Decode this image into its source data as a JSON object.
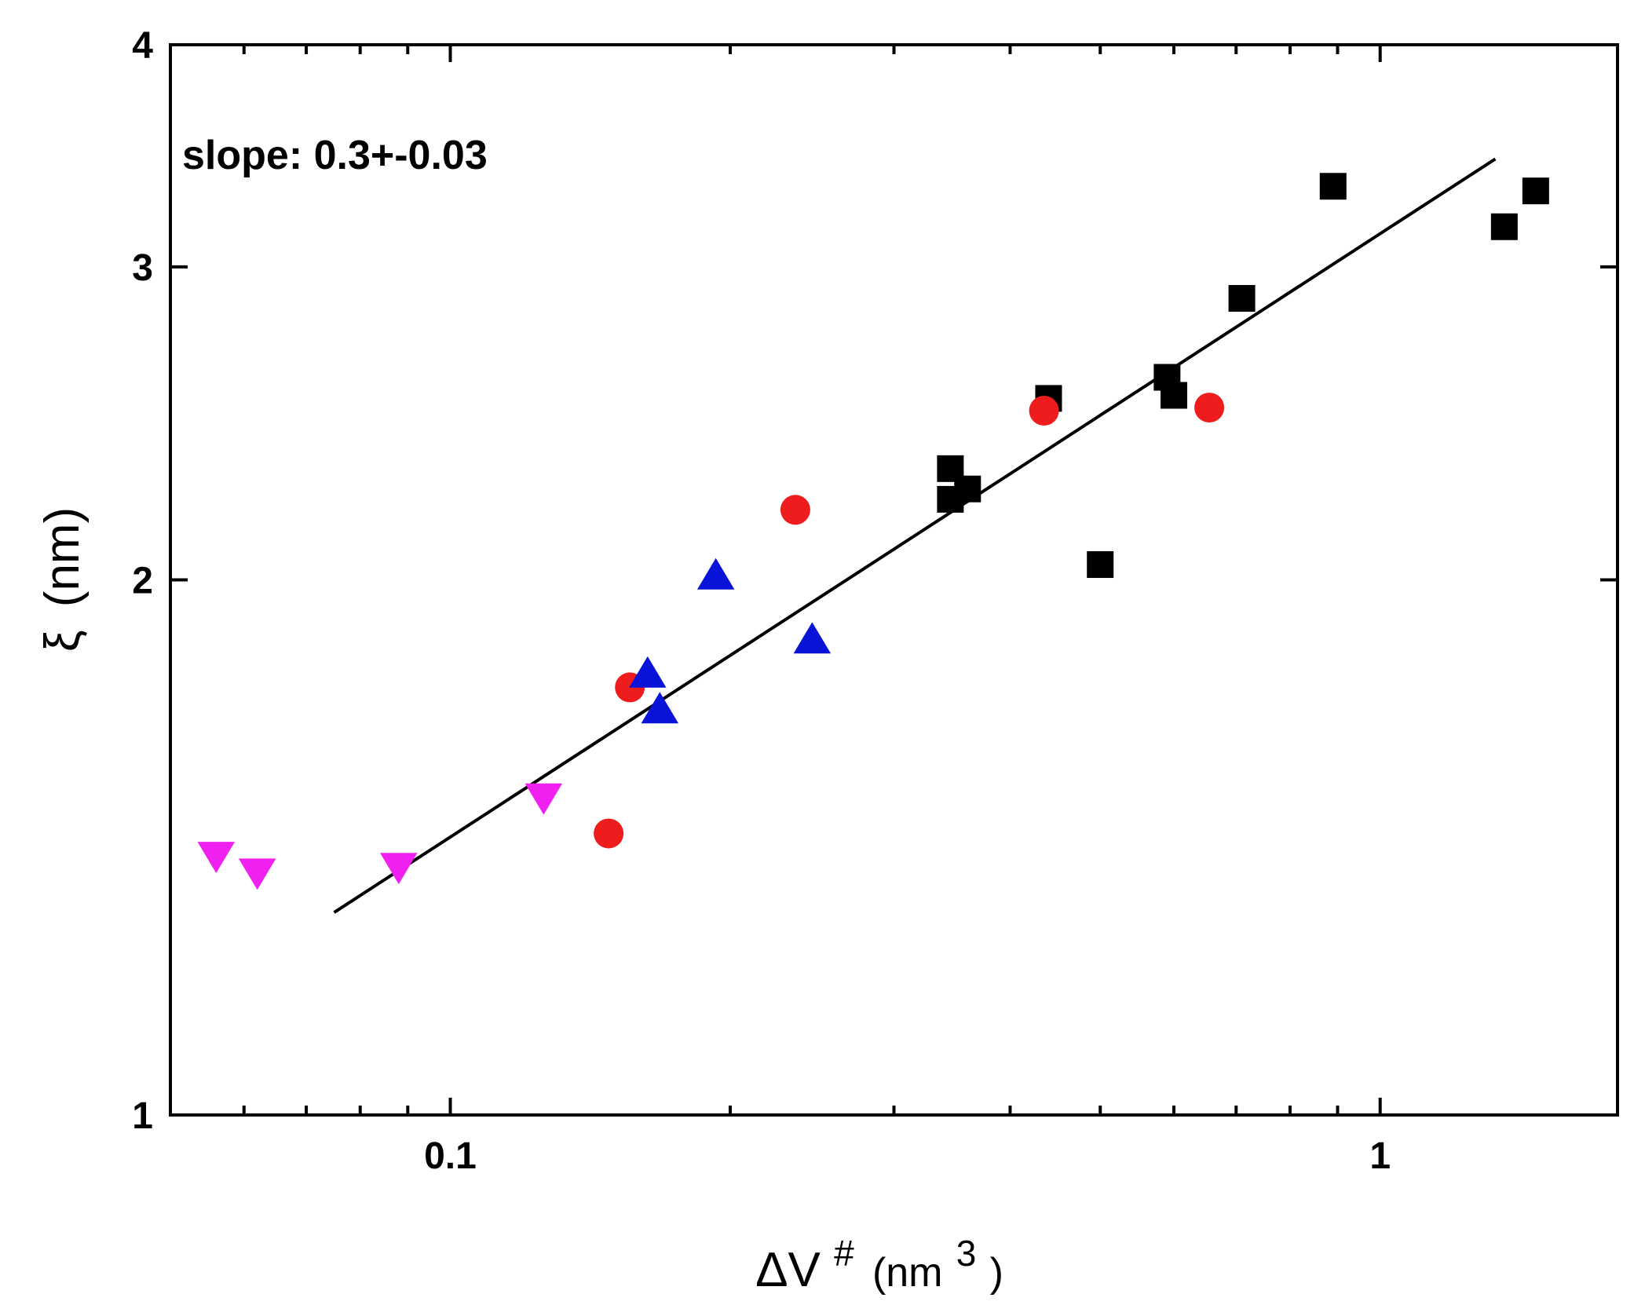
{
  "chart_data": {
    "type": "scatter",
    "title": "",
    "x_scale": "log",
    "y_scale": "log",
    "xlim": [
      0.05,
      1.8
    ],
    "ylim": [
      1,
      4
    ],
    "xlabel": {
      "main": "ΔV",
      "sup": "#",
      "unit_open": "(nm",
      "unit_sup": "3",
      "unit_close": ")"
    },
    "ylabel": {
      "symbol": "ξ",
      "unit": "(nm)"
    },
    "x_ticks": [
      {
        "value": 0.1,
        "label": "0.1"
      },
      {
        "value": 1,
        "label": "1"
      }
    ],
    "y_ticks": [
      {
        "value": 1,
        "label": "1"
      },
      {
        "value": 2,
        "label": "2"
      },
      {
        "value": 3,
        "label": "3"
      },
      {
        "value": 4,
        "label": "4"
      }
    ],
    "annotation": "slope: 0.3+-0.03",
    "series": [
      {
        "name": "black squares",
        "marker": "square",
        "color": "#000000",
        "points": [
          {
            "x": 0.345,
            "y": 2.31
          },
          {
            "x": 0.345,
            "y": 2.22
          },
          {
            "x": 0.36,
            "y": 2.25
          },
          {
            "x": 0.44,
            "y": 2.53
          },
          {
            "x": 0.5,
            "y": 2.04
          },
          {
            "x": 0.59,
            "y": 2.6
          },
          {
            "x": 0.6,
            "y": 2.54
          },
          {
            "x": 0.71,
            "y": 2.88
          },
          {
            "x": 0.89,
            "y": 3.33
          },
          {
            "x": 1.36,
            "y": 3.16
          },
          {
            "x": 1.47,
            "y": 3.31
          }
        ]
      },
      {
        "name": "red circles",
        "marker": "circle",
        "color": "#ee1c1c",
        "points": [
          {
            "x": 0.148,
            "y": 1.44
          },
          {
            "x": 0.156,
            "y": 1.74
          },
          {
            "x": 0.235,
            "y": 2.19
          },
          {
            "x": 0.435,
            "y": 2.49
          },
          {
            "x": 0.655,
            "y": 2.5
          }
        ]
      },
      {
        "name": "blue up triangles",
        "marker": "triangle-up",
        "color": "#0a14d8",
        "points": [
          {
            "x": 0.163,
            "y": 1.77
          },
          {
            "x": 0.168,
            "y": 1.69
          },
          {
            "x": 0.193,
            "y": 2.01
          },
          {
            "x": 0.245,
            "y": 1.85
          }
        ]
      },
      {
        "name": "magenta down triangles",
        "marker": "triangle-down",
        "color": "#f020f0",
        "points": [
          {
            "x": 0.056,
            "y": 1.4
          },
          {
            "x": 0.062,
            "y": 1.37
          },
          {
            "x": 0.088,
            "y": 1.38
          },
          {
            "x": 0.126,
            "y": 1.51
          }
        ]
      }
    ],
    "fit_line": {
      "color": "#000000",
      "points": [
        {
          "x": 0.075,
          "y": 1.3
        },
        {
          "x": 1.33,
          "y": 3.45
        }
      ]
    }
  }
}
